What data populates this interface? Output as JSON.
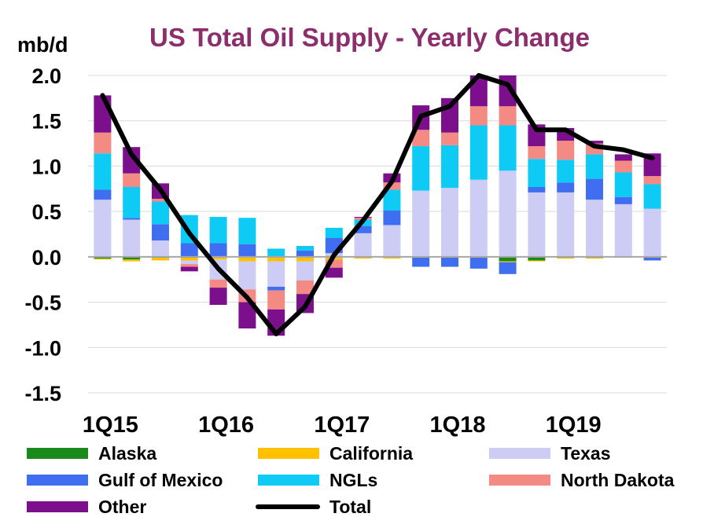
{
  "chart_data": {
    "type": "bar",
    "stacked": true,
    "title": "US Total Oil Supply - Yearly Change",
    "ylabel": "mb/d",
    "xlabel": "",
    "ylim": [
      -1.5,
      2.0
    ],
    "yticks": [
      "2.0",
      "1.5",
      "1.0",
      "0.5",
      "0.0",
      "-0.5",
      "-1.0",
      "-1.5"
    ],
    "ytick_values": [
      2.0,
      1.5,
      1.0,
      0.5,
      0.0,
      -0.5,
      -1.0,
      -1.5
    ],
    "grid": true,
    "legend_position": "bottom",
    "categories": [
      "1Q15",
      "2Q15",
      "3Q15",
      "4Q15",
      "1Q16",
      "2Q16",
      "3Q16",
      "4Q16",
      "1Q17",
      "2Q17",
      "3Q17",
      "4Q17",
      "1Q18",
      "2Q18",
      "3Q18",
      "4Q18",
      "1Q19",
      "2Q19",
      "3Q19",
      "4Q19"
    ],
    "x_tick_labels": [
      {
        "label": "1Q15",
        "index": 0
      },
      {
        "label": "1Q16",
        "index": 4
      },
      {
        "label": "1Q17",
        "index": 8
      },
      {
        "label": "1Q18",
        "index": 12
      },
      {
        "label": "1Q19",
        "index": 16
      }
    ],
    "series": [
      {
        "name": "Alaska",
        "color": "#1a8a1a",
        "values": [
          -0.02,
          -0.03,
          -0.01,
          -0.01,
          0,
          0,
          0,
          0,
          0.01,
          0,
          0,
          0,
          0,
          0,
          -0.05,
          -0.04,
          -0.01,
          -0.01,
          0,
          0
        ]
      },
      {
        "name": "California",
        "color": "#ffc000",
        "values": [
          -0.01,
          -0.02,
          -0.03,
          -0.03,
          -0.03,
          -0.05,
          -0.05,
          -0.05,
          -0.03,
          -0.02,
          -0.02,
          -0.01,
          -0.01,
          -0.01,
          -0.01,
          -0.01,
          -0.01,
          -0.01,
          -0.01,
          -0.01
        ]
      },
      {
        "name": "Texas",
        "color": "#ccccf5",
        "values": [
          0.63,
          0.41,
          0.18,
          -0.04,
          -0.22,
          -0.31,
          -0.28,
          -0.21,
          0.03,
          0.26,
          0.35,
          0.73,
          0.76,
          0.85,
          0.95,
          0.71,
          0.71,
          0.63,
          0.58,
          0.53
        ]
      },
      {
        "name": "Gulf of Mexico",
        "color": "#3f6ff0",
        "values": [
          0.11,
          0.02,
          0.18,
          0.15,
          0.15,
          0.14,
          -0.04,
          0.07,
          0.17,
          0.08,
          0.16,
          -0.1,
          -0.1,
          -0.12,
          -0.13,
          0.06,
          0.11,
          0.23,
          0.08,
          -0.03
        ]
      },
      {
        "name": "NGLs",
        "color": "#0ecbf5",
        "values": [
          0.4,
          0.34,
          0.25,
          0.31,
          0.29,
          0.29,
          0.09,
          0.05,
          0.11,
          0.07,
          0.23,
          0.49,
          0.47,
          0.6,
          0.5,
          0.31,
          0.25,
          0.27,
          0.27,
          0.27
        ]
      },
      {
        "name": "North Dakota",
        "color": "#f48a84",
        "values": [
          0.23,
          0.15,
          0.03,
          -0.03,
          -0.09,
          -0.14,
          -0.21,
          -0.15,
          -0.09,
          0.02,
          0.08,
          0.18,
          0.14,
          0.21,
          0.21,
          0.14,
          0.21,
          0.12,
          0.13,
          0.09
        ]
      },
      {
        "name": "Other",
        "color": "#7b0f8c",
        "values": [
          0.41,
          0.29,
          0.17,
          -0.05,
          -0.19,
          -0.29,
          -0.29,
          -0.21,
          -0.11,
          0.01,
          0.1,
          0.27,
          0.38,
          0.34,
          0.34,
          0.24,
          0.14,
          0.03,
          0.07,
          0.25
        ]
      }
    ],
    "total": {
      "name": "Total",
      "color": "#000000",
      "values": [
        1.78,
        1.13,
        0.74,
        0.26,
        -0.13,
        -0.45,
        -0.85,
        -0.55,
        0.02,
        0.4,
        0.83,
        1.55,
        1.66,
        2.0,
        1.9,
        1.4,
        1.4,
        1.22,
        1.18,
        1.09
      ]
    }
  }
}
